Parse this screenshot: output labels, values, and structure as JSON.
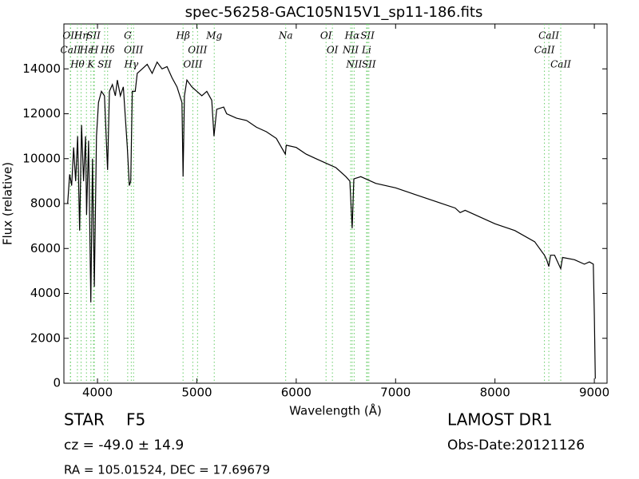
{
  "chart_data": {
    "type": "line",
    "title": "spec-56258-GAC105N15V1_sp11-186.fits",
    "x_label": "Wavelength (Å)",
    "y_label": "Flux (relative)",
    "xlim": [
      3662,
      9128
    ],
    "ylim": [
      0,
      16000
    ],
    "xticks": [
      4000,
      5000,
      6000,
      7000,
      8000,
      9000
    ],
    "yticks": [
      0,
      2000,
      4000,
      6000,
      8000,
      10000,
      12000,
      14000
    ],
    "series": [
      {
        "color": "#000000",
        "x": [
          3700,
          3720,
          3740,
          3760,
          3780,
          3800,
          3820,
          3840,
          3860,
          3880,
          3890,
          3910,
          3933,
          3950,
          3968,
          3990,
          4010,
          4040,
          4070,
          4102,
          4120,
          4150,
          4180,
          4200,
          4230,
          4260,
          4300,
          4320,
          4335,
          4350,
          4380,
          4400,
          4450,
          4500,
          4550,
          4600,
          4650,
          4700,
          4750,
          4800,
          4850,
          4861,
          4875,
          4900,
          4950,
          5000,
          5050,
          5100,
          5150,
          5172,
          5200,
          5270,
          5300,
          5400,
          5500,
          5600,
          5700,
          5800,
          5890,
          5900,
          6000,
          6100,
          6200,
          6300,
          6400,
          6500,
          6540,
          6563,
          6580,
          6650,
          6800,
          7000,
          7200,
          7400,
          7600,
          7650,
          7700,
          8000,
          8200,
          8400,
          8498,
          8520,
          8542,
          8560,
          8600,
          8662,
          8680,
          8800,
          8900,
          8950,
          8990,
          9000,
          9010
        ],
        "values": [
          8000,
          9300,
          8800,
          10500,
          9000,
          11000,
          6800,
          11500,
          9000,
          11000,
          7500,
          10800,
          3600,
          10000,
          4300,
          11000,
          12500,
          13000,
          12800,
          9500,
          13000,
          13300,
          12800,
          13500,
          12800,
          13200,
          10500,
          8800,
          9000,
          13000,
          13000,
          13800,
          14000,
          14200,
          13800,
          14300,
          14000,
          14100,
          13600,
          13200,
          12500,
          9200,
          12800,
          13500,
          13200,
          13000,
          12800,
          13000,
          12600,
          11000,
          12200,
          12300,
          12000,
          11800,
          11700,
          11400,
          11200,
          10900,
          10200,
          10600,
          10500,
          10200,
          10000,
          9800,
          9600,
          9200,
          9000,
          6900,
          9100,
          9200,
          8900,
          8700,
          8400,
          8100,
          7800,
          7600,
          7700,
          7100,
          6800,
          6300,
          5700,
          5500,
          5200,
          5700,
          5700,
          5100,
          5600,
          5500,
          5300,
          5400,
          5300,
          3000,
          200
        ]
      }
    ],
    "spectral_lines": [
      {
        "name": "OII",
        "wavelength": 3727
      },
      {
        "name": "CaII",
        "wavelength": 3730
      },
      {
        "name": "Hθ",
        "wavelength": 3798
      },
      {
        "name": "Hη",
        "wavelength": 3835
      },
      {
        "name": "Hε",
        "wavelength": 3889
      },
      {
        "name": "K",
        "wavelength": 3934
      },
      {
        "name": "SII",
        "wavelength": 3960
      },
      {
        "name": "H",
        "wavelength": 3968
      },
      {
        "name": "Hδ",
        "wavelength": 4102
      },
      {
        "name": "SII",
        "wavelength": 4072
      },
      {
        "name": "G",
        "wavelength": 4304
      },
      {
        "name": "OIII",
        "wavelength": 4363
      },
      {
        "name": "Hγ",
        "wavelength": 4340
      },
      {
        "name": "Hβ",
        "wavelength": 4861
      },
      {
        "name": "OIII",
        "wavelength": 5007
      },
      {
        "name": "OIII",
        "wavelength": 4959
      },
      {
        "name": "Mg",
        "wavelength": 5175
      },
      {
        "name": "Na",
        "wavelength": 5894
      },
      {
        "name": "OI",
        "wavelength": 6300
      },
      {
        "name": "OI",
        "wavelength": 6364
      },
      {
        "name": "Hα",
        "wavelength": 6563
      },
      {
        "name": "NII",
        "wavelength": 6548
      },
      {
        "name": "NII",
        "wavelength": 6583
      },
      {
        "name": "SII",
        "wavelength": 6717
      },
      {
        "name": "Li",
        "wavelength": 6708
      },
      {
        "name": "SII",
        "wavelength": 6731
      },
      {
        "name": "CaII",
        "wavelength": 8542
      },
      {
        "name": "CaII",
        "wavelength": 8498
      },
      {
        "name": "CaII",
        "wavelength": 8662
      }
    ]
  },
  "footer": {
    "class": "STAR",
    "subclass": "F5",
    "redshift": "cz = -49.0 ± 14.9",
    "coords": "RA = 105.01524, DEC = 17.69679",
    "survey": "LAMOST DR1",
    "obs_date": "Obs-Date:20121126"
  }
}
